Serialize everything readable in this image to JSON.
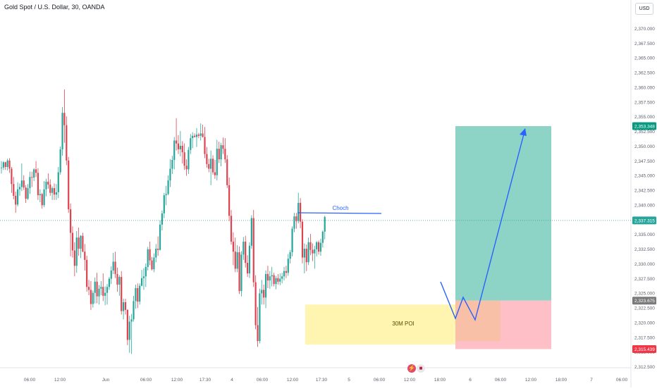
{
  "header": {
    "title": "Gold Spot / U.S. Dollar, 30, OANDA",
    "currency": "USD"
  },
  "colors": {
    "bull": "#26a69a",
    "bear": "#e0424f",
    "grid": "#f0f3fa",
    "axis_text": "#5d606b",
    "poi_fill": "#fff5b0",
    "target_fill": "#8dd3c6",
    "stop_fill": "#ffbfc6",
    "entry_fill": "#f8c0a6",
    "path": "#2962ff",
    "choch": "#2962ff"
  },
  "chart_data": {
    "type": "candlestick",
    "title": "Gold Spot / U.S. Dollar, 30, OANDA",
    "y_axis": {
      "ticks": [
        "2,370.000",
        "2,367.500",
        "2,365.000",
        "2,362.500",
        "2,360.000",
        "2,357.500",
        "2,355.000",
        "2,352.500",
        "2,350.000",
        "2,347.500",
        "2,345.000",
        "2,342.500",
        "2,340.000",
        "2,337.500",
        "2,335.000",
        "2,332.500",
        "2,330.000",
        "2,327.500",
        "2,325.000",
        "2,322.500",
        "2,320.000",
        "2,317.500",
        "2,315.000",
        "2,312.500"
      ],
      "range": [
        2311,
        2372
      ]
    },
    "x_axis": {
      "ticks": [
        "06:00",
        "12:00",
        "Jun",
        "06:00",
        "12:00",
        "17:30",
        "4",
        "06:00",
        "12:00",
        "17:30",
        "5",
        "06:00",
        "12:00",
        "18:00",
        "6",
        "06:00",
        "12:00",
        "18:00",
        "7",
        "06:00"
      ]
    },
    "ohlc": [
      [
        2346.2,
        2347.4,
        2345.3,
        2346.3
      ],
      [
        2346.3,
        2347.4,
        2345.9,
        2347.2
      ],
      [
        2347.2,
        2347.3,
        2345.9,
        2346.4
      ],
      [
        2346.4,
        2347.8,
        2345.8,
        2347.5
      ],
      [
        2347.5,
        2347.9,
        2345.4,
        2346.1
      ],
      [
        2346.1,
        2346.4,
        2342.0,
        2343.5
      ],
      [
        2343.5,
        2344.7,
        2340.9,
        2341.5
      ],
      [
        2341.5,
        2342.2,
        2338.6,
        2340.0
      ],
      [
        2340.0,
        2343.8,
        2339.7,
        2342.6
      ],
      [
        2342.6,
        2343.6,
        2341.5,
        2343.0
      ],
      [
        2343.0,
        2347.0,
        2342.3,
        2344.1
      ],
      [
        2344.1,
        2345.0,
        2342.5,
        2342.9
      ],
      [
        2342.9,
        2343.3,
        2340.3,
        2341.0
      ],
      [
        2341.0,
        2343.5,
        2340.8,
        2342.8
      ],
      [
        2342.8,
        2345.6,
        2341.8,
        2344.7
      ],
      [
        2344.7,
        2345.6,
        2343.0,
        2344.6
      ],
      [
        2344.6,
        2346.2,
        2344.0,
        2346.0
      ],
      [
        2346.0,
        2347.4,
        2344.7,
        2345.4
      ],
      [
        2345.4,
        2346.2,
        2340.8,
        2341.6
      ],
      [
        2341.6,
        2342.6,
        2340.4,
        2341.8
      ],
      [
        2341.8,
        2342.0,
        2339.3,
        2339.9
      ],
      [
        2339.9,
        2344.0,
        2339.6,
        2342.6
      ],
      [
        2342.6,
        2344.4,
        2341.4,
        2343.9
      ],
      [
        2343.9,
        2345.3,
        2342.7,
        2343.4
      ],
      [
        2343.4,
        2344.3,
        2341.5,
        2342.0
      ],
      [
        2342.0,
        2343.1,
        2340.8,
        2342.8
      ],
      [
        2342.8,
        2343.6,
        2340.8,
        2341.7
      ],
      [
        2341.7,
        2343.5,
        2340.8,
        2342.1
      ],
      [
        2342.1,
        2346.4,
        2341.1,
        2345.5
      ],
      [
        2345.5,
        2349.9,
        2345.1,
        2349.4
      ],
      [
        2349.4,
        2356.6,
        2348.3,
        2355.6
      ],
      [
        2355.6,
        2359.6,
        2350.5,
        2353.5
      ],
      [
        2353.5,
        2355.0,
        2346.7,
        2347.5
      ],
      [
        2347.5,
        2348.1,
        2338.6,
        2339.2
      ],
      [
        2339.2,
        2340.2,
        2331.2,
        2335.2
      ],
      [
        2335.2,
        2336.3,
        2331.0,
        2332.2
      ],
      [
        2332.2,
        2333.6,
        2327.8,
        2329.6
      ],
      [
        2329.6,
        2335.5,
        2328.4,
        2334.4
      ],
      [
        2334.4,
        2336.1,
        2331.3,
        2332.5
      ],
      [
        2332.5,
        2334.8,
        2330.9,
        2334.7
      ],
      [
        2334.7,
        2335.2,
        2331.9,
        2332.0
      ],
      [
        2332.0,
        2333.3,
        2328.8,
        2330.6
      ],
      [
        2330.6,
        2331.3,
        2325.2,
        2326.0
      ],
      [
        2326.0,
        2327.2,
        2324.6,
        2325.5
      ],
      [
        2325.5,
        2327.0,
        2322.1,
        2323.1
      ],
      [
        2323.1,
        2325.4,
        2322.5,
        2325.0
      ],
      [
        2325.0,
        2327.6,
        2323.2,
        2326.9
      ],
      [
        2326.9,
        2328.4,
        2323.2,
        2324.4
      ],
      [
        2324.4,
        2326.3,
        2323.0,
        2325.7
      ],
      [
        2325.7,
        2327.0,
        2324.6,
        2326.0
      ],
      [
        2326.0,
        2328.3,
        2323.6,
        2324.5
      ],
      [
        2324.5,
        2326.1,
        2322.9,
        2325.0
      ],
      [
        2325.0,
        2326.5,
        2323.0,
        2326.0
      ],
      [
        2326.0,
        2327.7,
        2325.5,
        2327.4
      ],
      [
        2327.4,
        2329.5,
        2326.5,
        2328.8
      ],
      [
        2328.8,
        2331.8,
        2328.2,
        2330.3
      ],
      [
        2330.3,
        2332.0,
        2327.5,
        2328.2
      ],
      [
        2328.2,
        2329.3,
        2325.2,
        2326.4
      ],
      [
        2326.4,
        2328.0,
        2324.5,
        2327.7
      ],
      [
        2327.7,
        2328.7,
        2321.3,
        2321.9
      ],
      [
        2321.9,
        2324.0,
        2320.5,
        2323.4
      ],
      [
        2323.4,
        2324.0,
        2321.3,
        2322.1
      ],
      [
        2322.1,
        2322.2,
        2316.1,
        2317.0
      ],
      [
        2317.0,
        2321.1,
        2314.8,
        2320.1
      ],
      [
        2320.1,
        2321.4,
        2314.6,
        2320.5
      ],
      [
        2320.5,
        2324.5,
        2320.1,
        2323.6
      ],
      [
        2323.6,
        2326.4,
        2322.3,
        2325.8
      ],
      [
        2325.8,
        2326.6,
        2322.4,
        2323.5
      ],
      [
        2323.5,
        2326.6,
        2323.0,
        2326.2
      ],
      [
        2326.2,
        2328.9,
        2326.1,
        2327.5
      ],
      [
        2327.5,
        2329.2,
        2325.5,
        2327.8
      ],
      [
        2327.8,
        2330.0,
        2326.0,
        2329.4
      ],
      [
        2329.4,
        2332.8,
        2328.8,
        2332.4
      ],
      [
        2332.4,
        2333.7,
        2329.7,
        2330.5
      ],
      [
        2330.5,
        2331.1,
        2328.8,
        2329.0
      ],
      [
        2329.0,
        2331.7,
        2328.5,
        2331.0
      ],
      [
        2331.0,
        2333.3,
        2330.2,
        2332.5
      ],
      [
        2332.5,
        2334.6,
        2331.3,
        2332.3
      ],
      [
        2332.3,
        2337.3,
        2332.2,
        2336.6
      ],
      [
        2336.6,
        2339.0,
        2335.6,
        2338.5
      ],
      [
        2338.5,
        2342.0,
        2337.7,
        2341.6
      ],
      [
        2341.6,
        2343.2,
        2339.9,
        2341.8
      ],
      [
        2341.8,
        2345.0,
        2341.6,
        2344.1
      ],
      [
        2344.1,
        2347.7,
        2343.0,
        2346.1
      ],
      [
        2346.1,
        2348.3,
        2345.2,
        2347.6
      ],
      [
        2347.6,
        2351.5,
        2346.0,
        2350.9
      ],
      [
        2350.9,
        2354.7,
        2349.2,
        2350.4
      ],
      [
        2350.4,
        2351.8,
        2348.6,
        2349.4
      ],
      [
        2349.4,
        2352.5,
        2348.2,
        2350.0
      ],
      [
        2350.0,
        2350.8,
        2347.0,
        2348.9
      ],
      [
        2348.9,
        2350.4,
        2345.9,
        2346.6
      ],
      [
        2346.6,
        2347.7,
        2344.9,
        2346.0
      ],
      [
        2346.0,
        2349.8,
        2345.2,
        2349.3
      ],
      [
        2349.3,
        2352.0,
        2348.6,
        2351.3
      ],
      [
        2351.3,
        2352.3,
        2349.6,
        2351.7
      ],
      [
        2351.7,
        2352.1,
        2351.4,
        2351.5
      ],
      [
        2351.5,
        2353.0,
        2349.8,
        2351.9
      ],
      [
        2351.9,
        2352.2,
        2351.3,
        2351.7
      ],
      [
        2351.7,
        2353.8,
        2350.9,
        2352.1
      ],
      [
        2352.1,
        2353.6,
        2351.4,
        2351.5
      ],
      [
        2351.5,
        2353.2,
        2347.9,
        2348.6
      ],
      [
        2348.6,
        2349.8,
        2346.3,
        2346.9
      ],
      [
        2346.9,
        2347.8,
        2345.5,
        2346.1
      ],
      [
        2346.1,
        2349.2,
        2343.3,
        2347.8
      ],
      [
        2347.8,
        2348.4,
        2345.1,
        2345.5
      ],
      [
        2345.5,
        2347.6,
        2344.4,
        2345.0
      ],
      [
        2345.0,
        2351.0,
        2344.1,
        2349.5
      ],
      [
        2349.5,
        2350.7,
        2347.1,
        2347.7
      ],
      [
        2347.7,
        2350.5,
        2346.5,
        2350.1
      ],
      [
        2350.1,
        2351.4,
        2348.6,
        2349.5
      ],
      [
        2349.5,
        2351.3,
        2347.1,
        2347.7
      ],
      [
        2347.7,
        2348.4,
        2342.8,
        2343.3
      ],
      [
        2343.3,
        2344.6,
        2337.2,
        2338.1
      ],
      [
        2338.1,
        2339.1,
        2333.2,
        2333.7
      ],
      [
        2333.7,
        2335.3,
        2329.7,
        2332.0
      ],
      [
        2332.0,
        2334.4,
        2328.5,
        2329.1
      ],
      [
        2329.1,
        2333.1,
        2328.5,
        2331.9
      ],
      [
        2331.9,
        2332.9,
        2324.8,
        2325.3
      ],
      [
        2325.3,
        2332.1,
        2324.4,
        2331.5
      ],
      [
        2331.5,
        2334.5,
        2330.6,
        2333.7
      ],
      [
        2333.7,
        2334.7,
        2329.3,
        2330.1
      ],
      [
        2330.1,
        2331.4,
        2327.7,
        2328.3
      ],
      [
        2328.3,
        2333.6,
        2327.5,
        2333.0
      ],
      [
        2333.0,
        2338.2,
        2332.5,
        2337.7
      ],
      [
        2337.7,
        2339.1,
        2326.0,
        2326.8
      ],
      [
        2326.8,
        2328.0,
        2318.8,
        2319.5
      ],
      [
        2319.5,
        2322.6,
        2315.8,
        2316.8
      ],
      [
        2316.8,
        2325.7,
        2316.4,
        2324.9
      ],
      [
        2324.9,
        2327.2,
        2323.0,
        2325.5
      ],
      [
        2325.5,
        2326.4,
        2323.0,
        2324.2
      ],
      [
        2324.2,
        2328.8,
        2322.4,
        2328.2
      ],
      [
        2328.2,
        2329.6,
        2325.8,
        2327.1
      ],
      [
        2327.1,
        2328.7,
        2325.7,
        2327.8
      ],
      [
        2327.8,
        2329.4,
        2326.1,
        2328.0
      ],
      [
        2328.0,
        2328.4,
        2326.1,
        2326.5
      ],
      [
        2326.5,
        2327.9,
        2325.6,
        2327.5
      ],
      [
        2327.5,
        2328.2,
        2326.4,
        2326.9
      ],
      [
        2326.9,
        2328.3,
        2326.3,
        2327.4
      ],
      [
        2327.4,
        2328.4,
        2326.6,
        2327.8
      ],
      [
        2327.8,
        2329.4,
        2327.1,
        2328.7
      ],
      [
        2328.7,
        2329.6,
        2327.5,
        2328.4
      ],
      [
        2328.4,
        2331.6,
        2327.9,
        2330.8
      ],
      [
        2330.8,
        2332.3,
        2330.0,
        2331.9
      ],
      [
        2331.9,
        2336.3,
        2331.2,
        2335.9
      ],
      [
        2335.9,
        2338.6,
        2335.3,
        2338.0
      ],
      [
        2338.0,
        2338.6,
        2335.9,
        2337.2
      ],
      [
        2337.2,
        2342.0,
        2336.8,
        2340.3
      ],
      [
        2340.3,
        2341.1,
        2336.0,
        2337.1
      ],
      [
        2337.1,
        2337.5,
        2330.0,
        2331.0
      ],
      [
        2331.0,
        2333.4,
        2328.3,
        2332.5
      ],
      [
        2332.5,
        2333.2,
        2328.7,
        2330.2
      ],
      [
        2330.2,
        2334.4,
        2329.7,
        2333.6
      ],
      [
        2333.6,
        2335.0,
        2331.4,
        2332.3
      ],
      [
        2332.3,
        2333.4,
        2330.4,
        2331.7
      ],
      [
        2331.7,
        2333.0,
        2329.1,
        2332.4
      ],
      [
        2332.4,
        2333.8,
        2331.2,
        2333.6
      ],
      [
        2333.6,
        2333.9,
        2331.5,
        2332.0
      ],
      [
        2332.0,
        2334.2,
        2331.3,
        2333.5
      ],
      [
        2333.5,
        2335.6,
        2332.7,
        2335.4
      ],
      [
        2335.4,
        2338.1,
        2334.1,
        2337.9
      ]
    ],
    "current_price": "2,337.315",
    "price_labels": {
      "target": "2,353.348",
      "entry": "2,323.675",
      "stop": "2,315.439"
    },
    "annotations": {
      "choch_label": "Choch",
      "poi_label": "30M POI"
    }
  }
}
